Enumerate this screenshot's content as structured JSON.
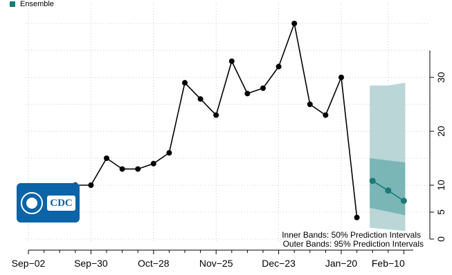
{
  "legend": {
    "label": "Ensemble",
    "color": "#1a7a78"
  },
  "logo": {
    "text": "CDC"
  },
  "notes": {
    "inner": "Inner Bands: 50% Prediction Intervals",
    "outer": "Outer Bands: 95% Prediction Intervals"
  },
  "chart_data": {
    "type": "line",
    "x_tick_labels": [
      "Sep−02",
      "Sep−30",
      "Oct−28",
      "Nov−25",
      "Dec−23",
      "Jan−20",
      "Feb−10"
    ],
    "y_ticks": [
      0,
      5,
      10,
      20,
      30
    ],
    "ylim": [
      0,
      35
    ],
    "grid": true,
    "series": [
      {
        "kind": "observed",
        "color": "#000000",
        "x": [
          "Sep-23",
          "Sep-30",
          "Oct-07",
          "Oct-14",
          "Oct-21",
          "Oct-28",
          "Nov-04",
          "Nov-11",
          "Nov-18",
          "Nov-25",
          "Dec-02",
          "Dec-09",
          "Dec-16",
          "Dec-23",
          "Dec-30",
          "Jan-06",
          "Jan-13",
          "Jan-20",
          "Jan-27"
        ],
        "values": [
          10,
          10,
          15,
          13,
          13,
          14,
          16,
          29,
          26,
          23,
          33,
          27,
          28,
          32,
          40,
          25,
          23,
          30,
          4
        ]
      },
      {
        "name": "Ensemble",
        "kind": "forecast",
        "color": "#1a7a78",
        "x": [
          "Feb-03",
          "Feb-10",
          "Feb-17"
        ],
        "values": [
          10.8,
          9.0,
          7.1
        ],
        "inner_band": {
          "lower": [
            5.8,
            5.1,
            4.4
          ],
          "upper": [
            15.0,
            14.6,
            14.2
          ]
        },
        "outer_band": {
          "lower": [
            2.1,
            1.8,
            1.5
          ],
          "upper": [
            28.5,
            28.5,
            29.0
          ]
        }
      }
    ]
  }
}
